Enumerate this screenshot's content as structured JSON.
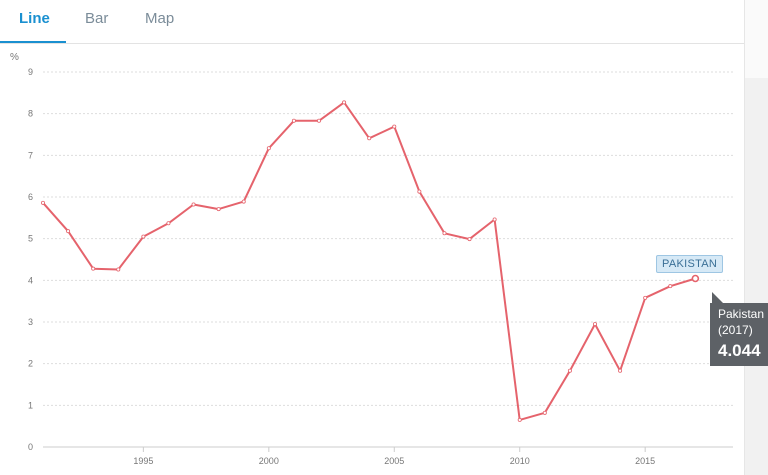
{
  "tabs": [
    {
      "label": "Line",
      "active": true
    },
    {
      "label": "Bar",
      "active": false
    },
    {
      "label": "Map",
      "active": false
    }
  ],
  "colors": {
    "accent": "#1a90d0",
    "series_line": "#e5636c",
    "tooltip_bg": "#5d6166",
    "tag_bg": "#d6e9f6"
  },
  "chart_data": {
    "type": "line",
    "ylabel": "%",
    "ylim": [
      0,
      9
    ],
    "yticks": [
      0,
      1,
      2,
      3,
      4,
      5,
      6,
      7,
      8,
      9
    ],
    "xlim": [
      1991,
      2018.5
    ],
    "xticks": [
      1995,
      2000,
      2005,
      2010,
      2015
    ],
    "grid": "horizontal-dashed",
    "series": [
      {
        "name": "PAKISTAN",
        "x": [
          1991,
          1992,
          1993,
          1994,
          1995,
          1996,
          1997,
          1998,
          1999,
          2000,
          2001,
          2002,
          2003,
          2004,
          2005,
          2006,
          2007,
          2008,
          2009,
          2010,
          2011,
          2012,
          2013,
          2014,
          2015,
          2016,
          2017
        ],
        "values": [
          5.86,
          5.18,
          4.28,
          4.26,
          5.05,
          5.37,
          5.82,
          5.71,
          5.89,
          7.17,
          7.83,
          7.83,
          8.27,
          7.41,
          7.69,
          6.13,
          5.13,
          4.99,
          5.46,
          0.65,
          0.82,
          1.83,
          2.95,
          1.83,
          3.58,
          3.86,
          4.044
        ]
      }
    ],
    "series_tag": "PAKISTAN",
    "tooltip": {
      "country": "Pakistan",
      "year": "(2017)",
      "value": "4.044"
    }
  }
}
